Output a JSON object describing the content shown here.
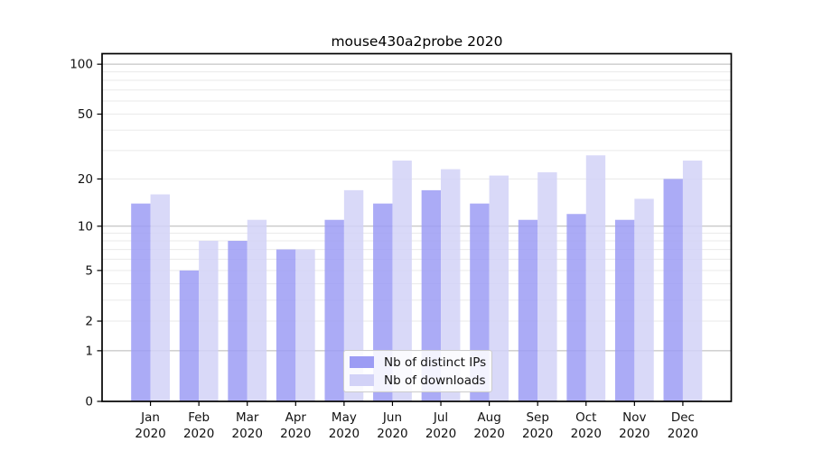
{
  "title": "mouse430a2probe 2020",
  "chart_data": {
    "type": "bar",
    "months": [
      "Jan",
      "Feb",
      "Mar",
      "Apr",
      "May",
      "Jun",
      "Jul",
      "Aug",
      "Sep",
      "Oct",
      "Nov",
      "Dec"
    ],
    "year": "2020",
    "series": [
      {
        "name": "Nb of distinct IPs",
        "color": "#9c9cf4",
        "values": [
          14,
          5,
          8,
          7,
          11,
          14,
          17,
          14,
          11,
          12,
          11,
          20
        ]
      },
      {
        "name": "Nb of downloads",
        "color": "#d2d2f7",
        "values": [
          16,
          8,
          11,
          7,
          17,
          26,
          23,
          21,
          22,
          28,
          15,
          26
        ]
      }
    ],
    "y_axis": {
      "scale": "log1p",
      "tick_labels": [
        100,
        50,
        20,
        10,
        5,
        2,
        1,
        0
      ],
      "major_gridlines": [
        1,
        10,
        100
      ],
      "minor_gridlines": [
        2,
        3,
        4,
        5,
        6,
        7,
        8,
        9,
        20,
        30,
        40,
        50,
        60,
        70,
        80,
        90
      ]
    },
    "legend_position": "lower center",
    "grid": true
  },
  "colors": {
    "background": "#ffffff",
    "major_grid": "#b6b6b6",
    "minor_grid": "#eaeaea",
    "spine": "#000000",
    "text": "#111111",
    "legend_border": "#cccccc"
  }
}
